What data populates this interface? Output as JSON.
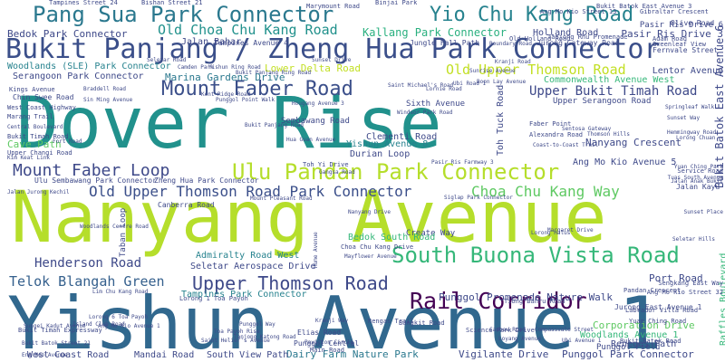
{
  "palette": {
    "purple": "#3b1f5c",
    "indigo": "#3d4a8a",
    "blue": "#2f6d8e",
    "teal": "#21918c",
    "green": "#2fb47c",
    "lime": "#8fd744",
    "yellow": "#c2df23"
  },
  "words": [
    {
      "text": "Dover Rise",
      "color": "#21918c"
    },
    {
      "text": "Nanyang Avenue",
      "color": "#b5de2b"
    },
    {
      "text": "Yishun Avenue 1",
      "color": "#31688e"
    },
    {
      "text": "Bukit Panjang / Zheng Hua Park Connector",
      "color": "#3b4f8a"
    },
    {
      "text": "Pang Sua Park Connector",
      "color": "#2a788e"
    },
    {
      "text": "Yio Chu Kang Road",
      "color": "#26828e"
    },
    {
      "text": "Ulu Pandan Park Connector",
      "color": "#b5de2b"
    },
    {
      "text": "Mount Faber Road",
      "color": "#3b4f8a"
    },
    {
      "text": "South Buona Vista Road",
      "color": "#35b779"
    },
    {
      "text": "Rail Corridor",
      "color": "#440154"
    },
    {
      "text": "Upper Thomson Road",
      "color": "#3e4989"
    },
    {
      "text": "Mount Faber Loop",
      "color": "#3e4989"
    },
    {
      "text": "Old Upper Thomson Road Park Connector",
      "color": "#3b4f8a"
    },
    {
      "text": "Choa Chu Kang Way",
      "color": "#5ec962"
    },
    {
      "text": "Old Choa Chu Kang Road",
      "color": "#21918c"
    },
    {
      "text": "Old Upper Thomson Road",
      "color": "#c2df23"
    },
    {
      "text": "Upper Bukit Timah Road",
      "color": "#3e4989"
    },
    {
      "text": "Telok Blangah Green",
      "color": "#35608d"
    },
    {
      "text": "Henderson Road",
      "color": "#3e4989"
    },
    {
      "text": "Kallang Park Connector",
      "color": "#2ab07f"
    },
    {
      "text": "Marina Gardens Drive",
      "color": "#2a788e"
    },
    {
      "text": "Lower Delta Road",
      "color": "#c2df23"
    },
    {
      "text": "Punggol Promenade Nature Walk",
      "color": "#3e4989"
    },
    {
      "text": "Tampines Park Connector",
      "color": "#26828e"
    },
    {
      "text": "Seletar Aerospace Drive",
      "color": "#3e4989"
    },
    {
      "text": "Admiralty Road West",
      "color": "#26828e"
    },
    {
      "text": "Nanyang Crescent",
      "color": "#3e4989"
    },
    {
      "text": "Bukit Batok East Avenue 6",
      "color": "#3e4989"
    },
    {
      "text": "Commonwealth Avenue West",
      "color": "#35b779"
    },
    {
      "text": "Lentor Avenue",
      "color": "#3e4989"
    },
    {
      "text": "Pasir Ris Drive 3",
      "color": "#3e4989"
    },
    {
      "text": "Holland Road",
      "color": "#3e4989"
    },
    {
      "text": "Jalan Bahar",
      "color": "#3e4989"
    },
    {
      "text": "Bedok Park Connector",
      "color": "#3e4989"
    },
    {
      "text": "Woodlands (SLE) Park Connector",
      "color": "#26828e"
    },
    {
      "text": "Serangoon Park Connector",
      "color": "#3e4989"
    },
    {
      "text": "Port Road",
      "color": "#3e4989"
    },
    {
      "text": "Dairy Farm Nature Park",
      "color": "#2a788e"
    },
    {
      "text": "Vigilante Drive",
      "color": "#3e4989"
    },
    {
      "text": "Punggol Park Connector",
      "color": "#3e4989"
    },
    {
      "text": "West Coast Road",
      "color": "#3e4989"
    },
    {
      "text": "Mandai Road",
      "color": "#3e4989"
    },
    {
      "text": "South View Path",
      "color": "#3e4989"
    },
    {
      "text": "Woodlands Avenue 1",
      "color": "#35b779"
    },
    {
      "text": "Sembawang Road",
      "color": "#3e4989"
    },
    {
      "text": "Clementi Road",
      "color": "#3e4989"
    },
    {
      "text": "Yishun Avenue 8",
      "color": "#26828e"
    },
    {
      "text": "Durian Loop",
      "color": "#3e4989"
    },
    {
      "text": "Toh Tuck Road",
      "color": "#3e4989"
    },
    {
      "text": "Ang Mo Kio Avenue 5",
      "color": "#3e4989"
    },
    {
      "text": "Cave Path",
      "color": "#5ec962"
    },
    {
      "text": "Create Way",
      "color": "#3e4989"
    },
    {
      "text": "Bedok South Road",
      "color": "#35b779"
    },
    {
      "text": "Upper Serangoon Road",
      "color": "#3e4989"
    },
    {
      "text": "Raffles Boulevard",
      "color": "#35b779"
    },
    {
      "text": "Corporation Drive",
      "color": "#5ec962"
    },
    {
      "text": "Punggol Field",
      "color": "#3e4989"
    },
    {
      "text": "Reneges Path",
      "color": "#3e4989"
    },
    {
      "text": "Pasir Ris Drive 6",
      "color": "#3e4989"
    },
    {
      "text": "Sixth Avenue",
      "color": "#3e4989"
    },
    {
      "text": "Lorong 1 Toa Payoh",
      "color": "#3e4989"
    },
    {
      "text": "Ulu Sembawang Park Connector",
      "color": "#3e4989"
    },
    {
      "text": "Zheng Hua Park Connector",
      "color": "#3e4989"
    },
    {
      "text": "Canberra Road",
      "color": "#3e4989"
    },
    {
      "text": "Jalan Kayu",
      "color": "#3e4989"
    },
    {
      "text": "Marang Trail",
      "color": "#3e4989"
    },
    {
      "text": "West Coast Highway",
      "color": "#3e4989"
    },
    {
      "text": "Punggol Central",
      "color": "#3e4989"
    },
    {
      "text": "Elias Road",
      "color": "#3e4989"
    },
    {
      "text": "Tampines Avenue 4",
      "color": "#3e4989"
    },
    {
      "text": "Jungle Fall Path",
      "color": "#3e4989"
    },
    {
      "text": "Jurong Gateway Road",
      "color": "#3e4989"
    },
    {
      "text": "Olive Road",
      "color": "#3e4989"
    },
    {
      "text": "Boon Lay Avenue",
      "color": "#3e4989"
    },
    {
      "text": "Fernvale Street",
      "color": "#3e4989"
    },
    {
      "text": "Adam Road",
      "color": "#3e4989"
    },
    {
      "text": "Kings Avenue",
      "color": "#3e4989"
    },
    {
      "text": "Chin Swee Road",
      "color": "#3e4989"
    },
    {
      "text": "Bukit Timah Road",
      "color": "#3e4989"
    },
    {
      "text": "Upper Changi Road",
      "color": "#3e4989"
    },
    {
      "text": "Main Road",
      "color": "#3e4989"
    },
    {
      "text": "Bukit Batok Road",
      "color": "#3e4989"
    },
    {
      "text": "Toh Yi Drive",
      "color": "#3e4989"
    },
    {
      "text": "Jurong East Avenue 1",
      "color": "#3e4989"
    },
    {
      "text": "Science Park Drive",
      "color": "#3e4989"
    },
    {
      "text": "Alexandra Road",
      "color": "#3e4989"
    },
    {
      "text": "Faber Point",
      "color": "#3e4989"
    },
    {
      "text": "Labrador Villa Road",
      "color": "#3e4989"
    },
    {
      "text": "Pandan Crescent",
      "color": "#3e4989"
    },
    {
      "text": "Tiong Bahru Road",
      "color": "#3e4989"
    },
    {
      "text": "Sengkang East Way",
      "color": "#3e4989"
    },
    {
      "text": "Bukit Timah Expressway",
      "color": "#3e4989"
    },
    {
      "text": "Old Holland Road",
      "color": "#3e4989"
    },
    {
      "text": "Ang Mo Kio Street 32",
      "color": "#3e4989"
    },
    {
      "text": "Yuan Ching Road",
      "color": "#3e4989"
    },
    {
      "text": "Marymount Road",
      "color": "#3e4989"
    },
    {
      "text": "Binjai Park",
      "color": "#3e4989"
    },
    {
      "text": "Tampines Street 24",
      "color": "#3e4989"
    },
    {
      "text": "Bishan Street 21",
      "color": "#3e4989"
    },
    {
      "text": "Bukit Batok East Avenue 3",
      "color": "#3e4989"
    },
    {
      "text": "Ang Mo Kio Street 13",
      "color": "#3e4989"
    },
    {
      "text": "Gibraltar Crescent",
      "color": "#3e4989"
    },
    {
      "text": "Tanjong Rhu Promenade",
      "color": "#3e4989"
    },
    {
      "text": "Greenleaf View",
      "color": "#3e4989"
    },
    {
      "text": "Sunset Way",
      "color": "#3e4989"
    },
    {
      "text": "Lorong Chuan",
      "color": "#3e4989"
    },
    {
      "text": "Hemmingway Road",
      "color": "#3e4989"
    },
    {
      "text": "Service Road",
      "color": "#3e4989"
    },
    {
      "text": "Pavilion Circle",
      "color": "#3e4989"
    },
    {
      "text": "Rengas Trail",
      "color": "#3e4989"
    },
    {
      "text": "Punggol Point Walk",
      "color": "#3e4989"
    },
    {
      "text": "Bangkit Road",
      "color": "#3e4989"
    },
    {
      "text": "Windsor Park Road",
      "color": "#3e4989"
    },
    {
      "text": "Coast-to-Coast Trail",
      "color": "#3e4989"
    },
    {
      "text": "Hougang Avenue 3",
      "color": "#3e4989"
    },
    {
      "text": "Bukit Panjang Ring Road",
      "color": "#3e4989"
    },
    {
      "text": "Saint Michael's Road",
      "color": "#3e4989"
    },
    {
      "text": "Sungei Kadut Avenue",
      "color": "#3e4989"
    },
    {
      "text": "Lorong 6 Toa Payoh",
      "color": "#3e4989"
    },
    {
      "text": "Woodlands Centre Road",
      "color": "#3e4989"
    },
    {
      "text": "Island Club Road",
      "color": "#3e4989"
    },
    {
      "text": "Choa Chu Kang Drive",
      "color": "#3e4989"
    },
    {
      "text": "Mayflower Avenue",
      "color": "#3e4989"
    },
    {
      "text": "Nanyang Drive",
      "color": "#3e4989"
    },
    {
      "text": "Taban Loop",
      "color": "#3e4989"
    },
    {
      "text": "Kent Ridge Road",
      "color": "#3e4989"
    },
    {
      "text": "Mount Pleasant Road",
      "color": "#3e4989"
    },
    {
      "text": "Siglap Park Connector",
      "color": "#3e4989"
    },
    {
      "text": "Hume Avenue",
      "color": "#3e4989"
    },
    {
      "text": "Lorong Halus",
      "color": "#3e4989"
    },
    {
      "text": "Jalan Anak Bukit",
      "color": "#3e4989"
    },
    {
      "text": "Bukit Batok Street 21",
      "color": "#3e4989"
    },
    {
      "text": "Eng Neo Avenue",
      "color": "#3e4989"
    },
    {
      "text": "Lim Chu Kang Road",
      "color": "#3e4989"
    },
    {
      "text": "Ang Mo Kio Avenue 1",
      "color": "#3e4989"
    },
    {
      "text": "Sin Ming Avenue",
      "color": "#3e4989"
    },
    {
      "text": "Braddell Road",
      "color": "#3e4989"
    },
    {
      "text": "Yishun Ring Road",
      "color": "#3e4989"
    },
    {
      "text": "Camden Park",
      "color": "#3e4989"
    },
    {
      "text": "Seletar Road",
      "color": "#3e4989"
    },
    {
      "text": "Sunset Drive",
      "color": "#3e4989"
    },
    {
      "text": "Toa Payoh Rise",
      "color": "#3e4989"
    },
    {
      "text": "Saint Helier's Avenue",
      "color": "#3e4989"
    },
    {
      "text": "Tanjong Katong Road",
      "color": "#3e4989"
    },
    {
      "text": "Punggol Way",
      "color": "#3e4989"
    },
    {
      "text": "Kranji Way",
      "color": "#3e4989"
    },
    {
      "text": "Cashew Road",
      "color": "#3e4989"
    },
    {
      "text": "Loyang Avenue",
      "color": "#3e4989"
    },
    {
      "text": "Compassvale Street",
      "color": "#3e4989"
    },
    {
      "text": "Ubi Avenue 1",
      "color": "#3e4989"
    },
    {
      "text": "Boundary Road",
      "color": "#3e4989"
    },
    {
      "text": "Sunrise Avenue",
      "color": "#3e4989"
    },
    {
      "text": "Kranji Road",
      "color": "#3e4989"
    },
    {
      "text": "Ubi Road 1",
      "color": "#3e4989"
    },
    {
      "text": "Lornie Road",
      "color": "#3e4989"
    },
    {
      "text": "Yuan Ching Park",
      "color": "#3e4989"
    },
    {
      "text": "Tuas South Avenue",
      "color": "#3e4989"
    },
    {
      "text": "Margaret Drive",
      "color": "#3e4989"
    },
    {
      "text": "Pasir Ris Farmway 3",
      "color": "#3e4989"
    },
    {
      "text": "Sentosa Gateway",
      "color": "#3e4989"
    },
    {
      "text": "Central Boulevard",
      "color": "#3e4989"
    },
    {
      "text": "Kim Keat Link",
      "color": "#3e4989"
    },
    {
      "text": "Fort Road",
      "color": "#3e4989"
    },
    {
      "text": "Jalan Jurong Kechil",
      "color": "#3e4989"
    },
    {
      "text": "Hua Guan Avenue",
      "color": "#3e4989"
    },
    {
      "text": "Bukit Panjang Road",
      "color": "#3e4989"
    },
    {
      "text": "Gangsa Road",
      "color": "#3e4989"
    },
    {
      "text": "Springleaf Walk",
      "color": "#3e4989"
    },
    {
      "text": "Thomson Hills",
      "color": "#3e4989"
    },
    {
      "text": "Sunset Place",
      "color": "#3e4989"
    },
    {
      "text": "Seletar Hills",
      "color": "#3e4989"
    }
  ]
}
